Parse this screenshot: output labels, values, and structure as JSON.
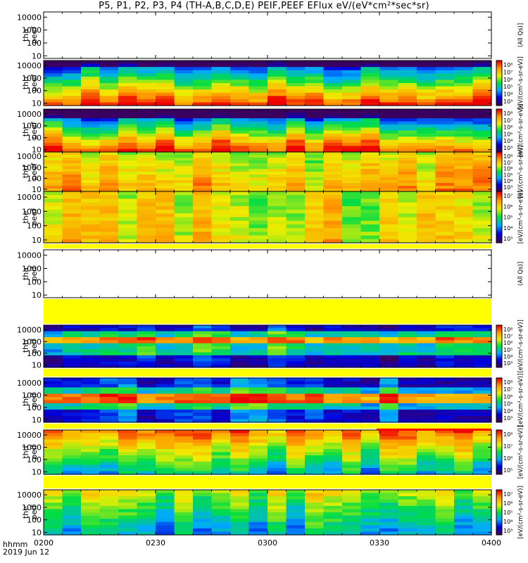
{
  "title": "P5, P1, P2, P3, P4 (TH-A,B,C,D,E) PEIF,PEEF EFlux eV/(eV*cm²*sec*sr)",
  "x_axis": {
    "label_line1": "hhmm",
    "label_line2": "2019 Jun 12",
    "ticks": [
      "0200",
      "0230",
      "0300",
      "0330",
      "0400"
    ]
  },
  "chart_data": {
    "type": "heatmap",
    "x_range": [
      "02:00",
      "04:00"
    ],
    "y_scale": "log",
    "y_unit": "eV",
    "y_ticks": [
      10,
      100,
      1000,
      10000
    ],
    "panels": [
      {
        "ylabel": [
          "tha",
          "peef"
        ],
        "has_data": false,
        "colorbar_label": "(All Qs)]",
        "colorbar_ticks": []
      },
      {
        "ylabel": [
          "thb",
          "peef"
        ],
        "has_data": true,
        "colorbar_label": "[eV/(cm²-s-sr-eV)]",
        "colorbar_ticks": [
          "10⁸",
          "10⁷",
          "10⁶",
          "10⁵",
          "10⁴",
          "10³"
        ]
      },
      {
        "ylabel": [
          "thc",
          "peef"
        ],
        "has_data": true,
        "colorbar_label": "[eV/(cm²-s-sr-eV)]",
        "colorbar_ticks": [
          "10⁸",
          "10⁷",
          "10⁶",
          "10⁵",
          "10⁴",
          "10³"
        ]
      },
      {
        "ylabel": [
          "thd",
          "peef"
        ],
        "has_data": true,
        "colorbar_label": "[eV/(cm²-s-sr-eV)]",
        "colorbar_ticks": [
          "10⁸",
          "10⁷",
          "10⁶",
          "10⁵",
          "10⁴",
          "10³"
        ]
      },
      {
        "ylabel": [
          "the",
          "peef"
        ],
        "has_data": true,
        "colorbar_label": "[eV/(cm²-s-sr-eV)]",
        "colorbar_ticks": [
          "10⁷",
          "10⁶",
          "10⁵",
          "10⁴",
          "10³"
        ]
      },
      {
        "ylabel": [
          "tha",
          "peif"
        ],
        "has_data": false,
        "colorbar_label": "(All Qs)]",
        "colorbar_ticks": []
      },
      {
        "ylabel": [
          "thb",
          "peif"
        ],
        "has_data": true,
        "colorbar_label": "[eV/(cm²-s-sr-eV)]",
        "colorbar_ticks": [
          "10⁸",
          "10⁷",
          "10⁶",
          "10⁵",
          "10⁴",
          "10³"
        ]
      },
      {
        "ylabel": [
          "thc",
          "peif"
        ],
        "has_data": true,
        "colorbar_label": "[eV/(cm²-s-sr-eV)]",
        "colorbar_ticks": [
          "10⁸",
          "10⁷",
          "10⁶",
          "10⁵",
          "10⁴",
          "10³"
        ]
      },
      {
        "ylabel": [
          "thd",
          "peif"
        ],
        "has_data": true,
        "colorbar_label": "[eV/(cm²-s-sr-eV)]",
        "colorbar_ticks": [
          "10⁸",
          "10⁷",
          "10⁶",
          "10⁵"
        ]
      },
      {
        "ylabel": [
          "the",
          "peif"
        ],
        "has_data": true,
        "colorbar_label": "[eV/(cm²-s-sr-eV)]",
        "colorbar_ticks": [
          "10⁷",
          "10⁶",
          "10⁵",
          "10⁴",
          "10³"
        ]
      }
    ],
    "colormap": [
      "#3a0060",
      "#0000dd",
      "#00aaff",
      "#00dd44",
      "#eeee00",
      "#ff9900",
      "#ee0000"
    ]
  }
}
